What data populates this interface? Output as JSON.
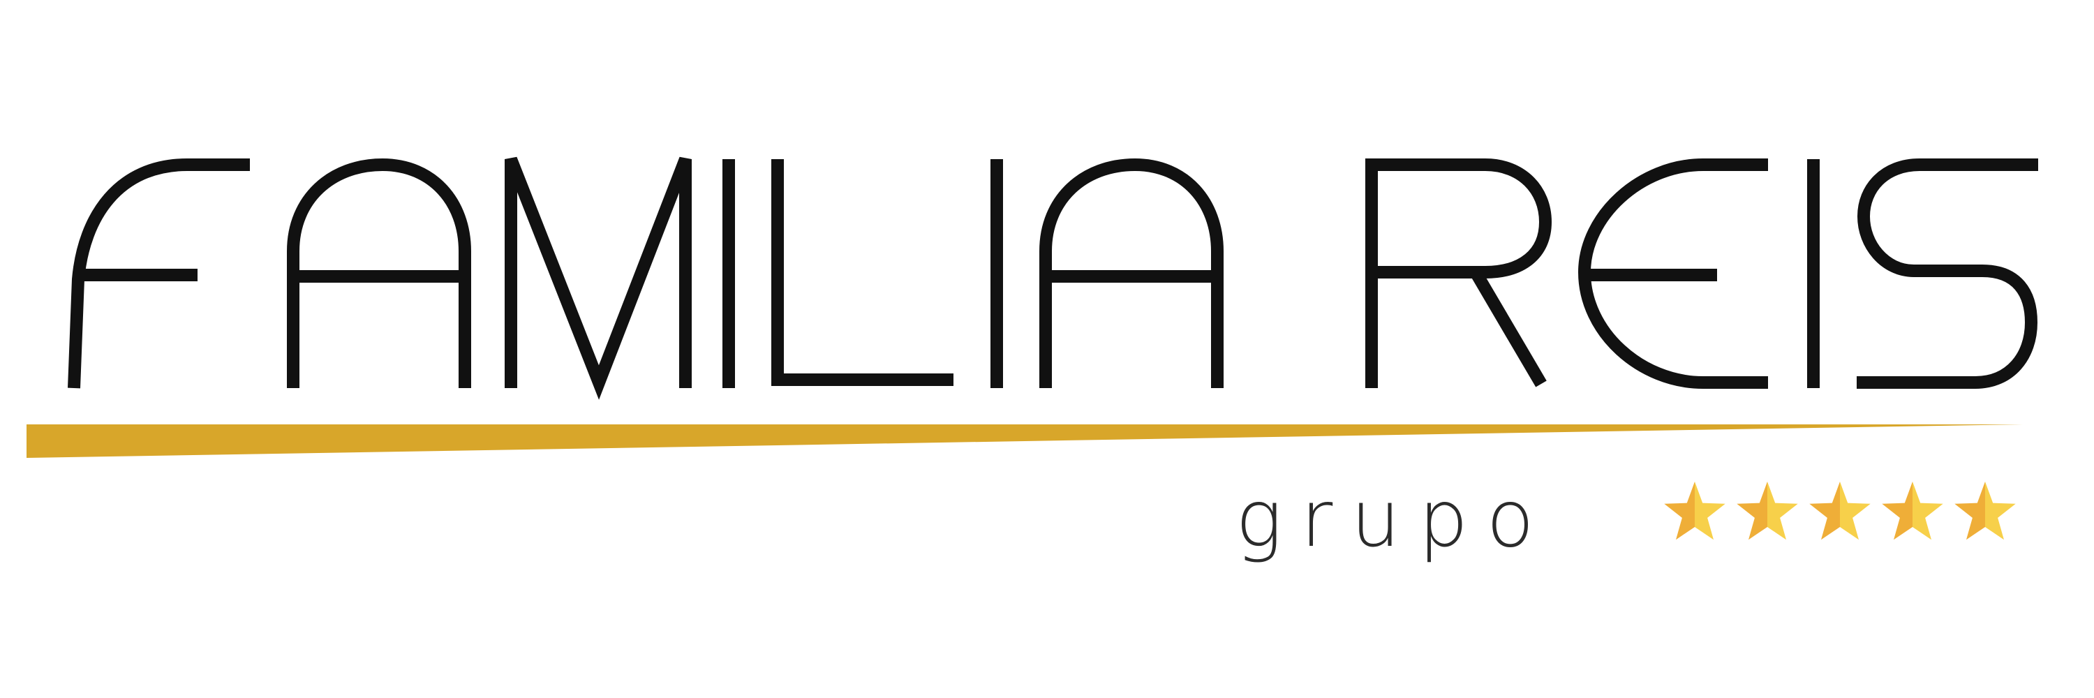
{
  "logo": {
    "brand_name": "FAMILIA REIS",
    "sub_label": "grupo",
    "star_rating": 5,
    "star_max": 5,
    "colors": {
      "letters": "#111111",
      "gold_bar": "#D8A62A",
      "star_light": "#F7D04A",
      "star_dark": "#EFAE38",
      "sub_label": "#2b2b2b",
      "background": "#FFFFFF"
    }
  }
}
